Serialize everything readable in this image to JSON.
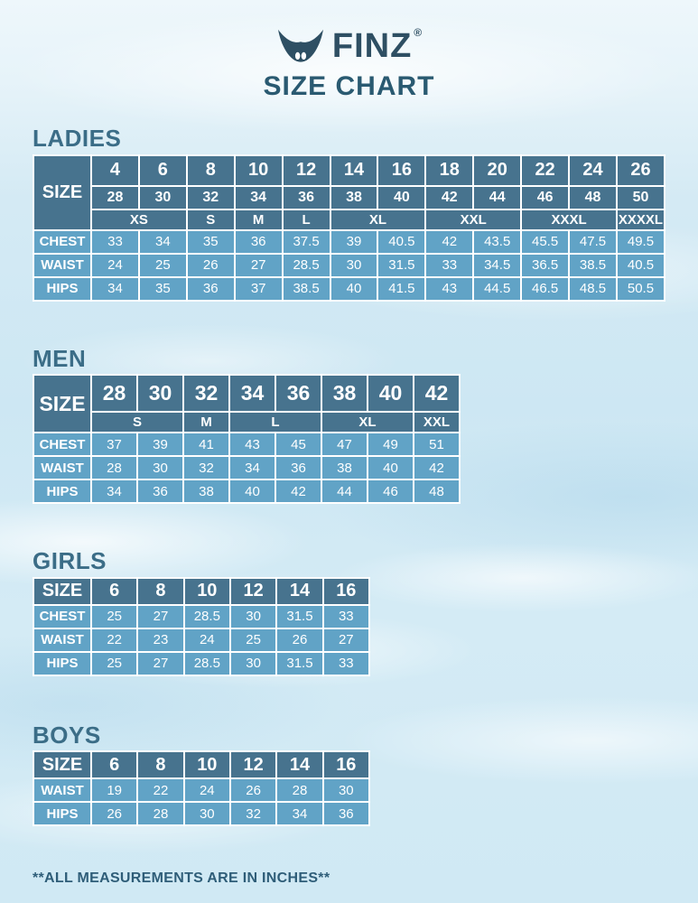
{
  "brand": {
    "logo_text": "FINZ",
    "registered_mark": "®",
    "title": "SIZE CHART"
  },
  "colors": {
    "header_cell": "#47738e",
    "data_cell": "#61a3c6",
    "section_title": "#3b6d87",
    "brand_text": "#2e4f63",
    "background_base": "#d2eaf5"
  },
  "footer": {
    "note": "**ALL MEASUREMENTS ARE IN INCHES**"
  },
  "tables": [
    {
      "id": "ladies",
      "title": "LADIES",
      "size_label": "SIZE",
      "header_rows": [
        {
          "cells": [
            {
              "t": "4"
            },
            {
              "t": "6"
            },
            {
              "t": "8"
            },
            {
              "t": "10"
            },
            {
              "t": "12"
            },
            {
              "t": "14"
            },
            {
              "t": "16"
            },
            {
              "t": "18"
            },
            {
              "t": "20"
            },
            {
              "t": "22"
            },
            {
              "t": "24"
            },
            {
              "t": "26"
            }
          ]
        },
        {
          "cells": [
            {
              "t": "28"
            },
            {
              "t": "30"
            },
            {
              "t": "32"
            },
            {
              "t": "34"
            },
            {
              "t": "36"
            },
            {
              "t": "38"
            },
            {
              "t": "40"
            },
            {
              "t": "42"
            },
            {
              "t": "44"
            },
            {
              "t": "46"
            },
            {
              "t": "48"
            },
            {
              "t": "50"
            }
          ]
        },
        {
          "cells": [
            {
              "t": "XS",
              "span": 2
            },
            {
              "t": "S"
            },
            {
              "t": "M"
            },
            {
              "t": "L"
            },
            {
              "t": "XL",
              "span": 2
            },
            {
              "t": "XXL",
              "span": 2
            },
            {
              "t": "XXXL",
              "span": 2
            },
            {
              "t": "XXXXL"
            }
          ]
        }
      ],
      "body_rows": [
        {
          "label": "CHEST",
          "values": [
            "33",
            "34",
            "35",
            "36",
            "37.5",
            "39",
            "40.5",
            "42",
            "43.5",
            "45.5",
            "47.5",
            "49.5"
          ]
        },
        {
          "label": "WAIST",
          "values": [
            "24",
            "25",
            "26",
            "27",
            "28.5",
            "30",
            "31.5",
            "33",
            "34.5",
            "36.5",
            "38.5",
            "40.5"
          ]
        },
        {
          "label": "HIPS",
          "values": [
            "34",
            "35",
            "36",
            "37",
            "38.5",
            "40",
            "41.5",
            "43",
            "44.5",
            "46.5",
            "48.5",
            "50.5"
          ]
        }
      ]
    },
    {
      "id": "men",
      "title": "MEN",
      "size_label": "SIZE",
      "header_rows": [
        {
          "cells": [
            {
              "t": "28"
            },
            {
              "t": "30"
            },
            {
              "t": "32"
            },
            {
              "t": "34"
            },
            {
              "t": "36"
            },
            {
              "t": "38"
            },
            {
              "t": "40"
            },
            {
              "t": "42"
            }
          ]
        },
        {
          "cells": [
            {
              "t": "S",
              "span": 2
            },
            {
              "t": "M"
            },
            {
              "t": "L",
              "span": 2
            },
            {
              "t": "XL",
              "span": 2
            },
            {
              "t": "XXL"
            }
          ]
        }
      ],
      "body_rows": [
        {
          "label": "CHEST",
          "values": [
            "37",
            "39",
            "41",
            "43",
            "45",
            "47",
            "49",
            "51"
          ]
        },
        {
          "label": "WAIST",
          "values": [
            "28",
            "30",
            "32",
            "34",
            "36",
            "38",
            "40",
            "42"
          ]
        },
        {
          "label": "HIPS",
          "values": [
            "34",
            "36",
            "38",
            "40",
            "42",
            "44",
            "46",
            "48"
          ]
        }
      ]
    },
    {
      "id": "girls",
      "title": "GIRLS",
      "size_label": "SIZE",
      "header_rows": [
        {
          "cells": [
            {
              "t": "6"
            },
            {
              "t": "8"
            },
            {
              "t": "10"
            },
            {
              "t": "12"
            },
            {
              "t": "14"
            },
            {
              "t": "16"
            }
          ]
        }
      ],
      "body_rows": [
        {
          "label": "CHEST",
          "values": [
            "25",
            "27",
            "28.5",
            "30",
            "31.5",
            "33"
          ]
        },
        {
          "label": "WAIST",
          "values": [
            "22",
            "23",
            "24",
            "25",
            "26",
            "27"
          ]
        },
        {
          "label": "HIPS",
          "values": [
            "25",
            "27",
            "28.5",
            "30",
            "31.5",
            "33"
          ]
        }
      ]
    },
    {
      "id": "boys",
      "title": "BOYS",
      "size_label": "SIZE",
      "header_rows": [
        {
          "cells": [
            {
              "t": "6"
            },
            {
              "t": "8"
            },
            {
              "t": "10"
            },
            {
              "t": "12"
            },
            {
              "t": "14"
            },
            {
              "t": "16"
            }
          ]
        }
      ],
      "body_rows": [
        {
          "label": "WAIST",
          "values": [
            "19",
            "22",
            "24",
            "26",
            "28",
            "30"
          ]
        },
        {
          "label": "HIPS",
          "values": [
            "26",
            "28",
            "30",
            "32",
            "34",
            "36"
          ]
        }
      ]
    }
  ]
}
